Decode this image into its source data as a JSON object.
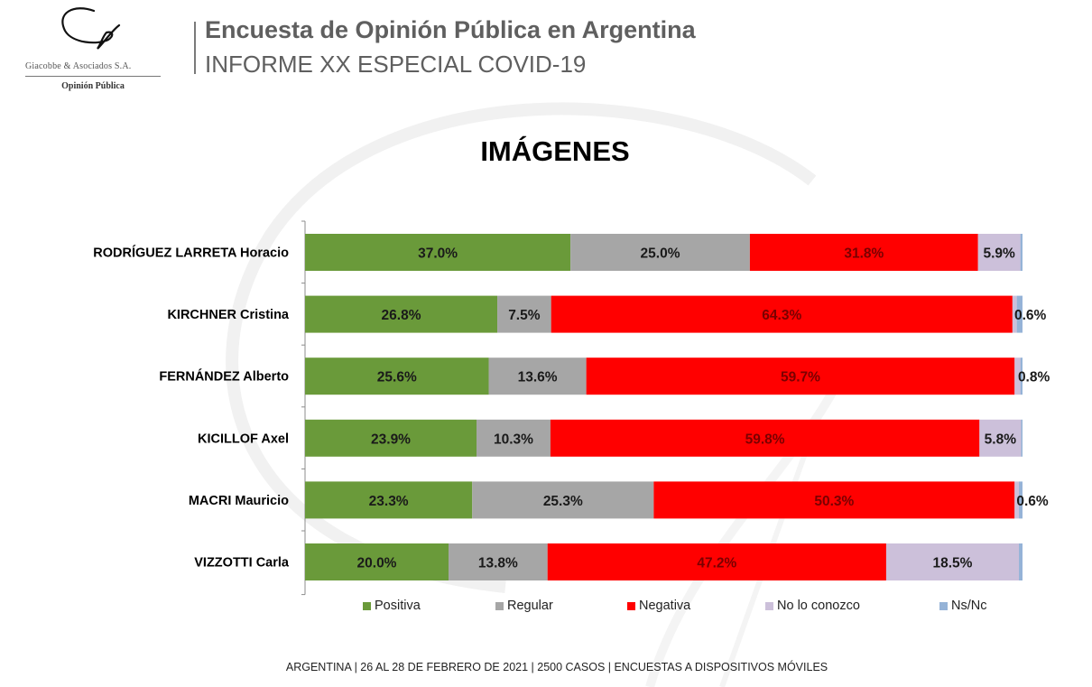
{
  "header": {
    "logo_company": "Giacobbe & Asociados S.A.",
    "logo_subtitle": "Opinión Pública",
    "title": "Encuesta de Opinión Pública en Argentina",
    "subtitle": "INFORME XX ESPECIAL COVID-19"
  },
  "chart_data": {
    "type": "bar",
    "orientation": "horizontal",
    "stacked": true,
    "normalized": true,
    "title": "IMÁGENES",
    "xlabel": "",
    "ylabel": "",
    "xlim": [
      0,
      100
    ],
    "grid": false,
    "legend_position": "bottom",
    "categories": [
      "RODRÍGUEZ LARRETA Horacio",
      "KIRCHNER Cristina",
      "FERNÁNDEZ Alberto",
      "KICILLOF Axel",
      "MACRI Mauricio",
      "VIZZOTTI Carla"
    ],
    "series": [
      {
        "name": "Positiva",
        "color": "#6a9a3a",
        "label_color": "#1a1a1a",
        "values": [
          37.0,
          26.8,
          25.6,
          23.9,
          23.3,
          20.0
        ],
        "labels": [
          "37.0%",
          "26.8%",
          "25.6%",
          "23.9%",
          "23.3%",
          "20.0%"
        ]
      },
      {
        "name": "Regular",
        "color": "#a6a6a6",
        "label_color": "#1a1a1a",
        "values": [
          25.0,
          7.5,
          13.6,
          10.3,
          25.3,
          13.8
        ],
        "labels": [
          "25.0%",
          "7.5%",
          "13.6%",
          "10.3%",
          "25.3%",
          "13.8%"
        ]
      },
      {
        "name": "Negativa",
        "color": "#ff0000",
        "label_color": "#7a0000",
        "values": [
          31.8,
          64.3,
          59.7,
          59.8,
          50.3,
          47.2
        ],
        "labels": [
          "31.8%",
          "64.3%",
          "59.7%",
          "59.8%",
          "50.3%",
          "47.2%"
        ]
      },
      {
        "name": "No lo conozco",
        "color": "#ccc0da",
        "label_color": "#1a1a1a",
        "values": [
          5.9,
          0.6,
          0.8,
          5.8,
          0.6,
          18.5
        ],
        "labels": [
          "5.9%",
          "0.6%",
          "0.8%",
          "5.8%",
          "0.6%",
          "18.5%"
        ]
      },
      {
        "name": "Ns/Nc",
        "color": "#95b3d7",
        "label_color": "#1a1a1a",
        "values": [
          0.3,
          0.8,
          0.3,
          0.2,
          0.5,
          0.5
        ],
        "labels": [
          null,
          null,
          null,
          null,
          null,
          null
        ]
      }
    ]
  },
  "footer": {
    "text": "ARGENTINA | 26 AL 28 DE FEBRERO DE 2021 | 2500 CASOS | ENCUESTAS A DISPOSITIVOS MÓVILES"
  }
}
